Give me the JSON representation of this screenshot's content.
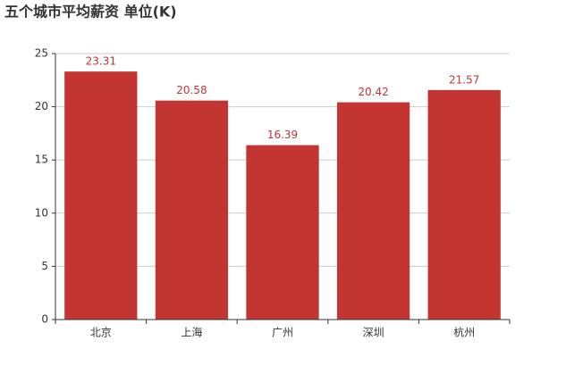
{
  "chart_data": {
    "type": "bar",
    "title": "五个城市平均薪资 单位(K)",
    "categories": [
      "北京",
      "上海",
      "广州",
      "深圳",
      "杭州"
    ],
    "values": [
      23.31,
      20.58,
      16.39,
      20.42,
      21.57
    ],
    "color": "#c23531",
    "ylim": [
      0,
      25
    ],
    "yticks": [
      0,
      5,
      10,
      15,
      20,
      25
    ],
    "grid": true
  }
}
